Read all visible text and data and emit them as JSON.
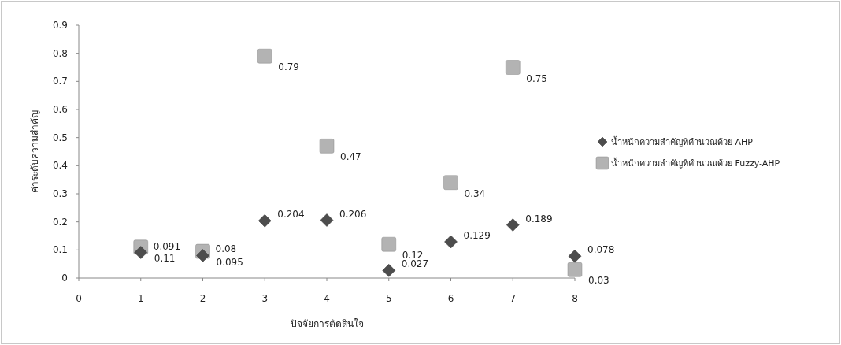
{
  "chart_data": {
    "type": "scatter",
    "xlabel": "ปัจจัยการตัดสินใจ",
    "ylabel": "ค่าระดับความสำคัญ",
    "x": [
      1,
      2,
      3,
      4,
      5,
      6,
      7,
      8
    ],
    "series": [
      {
        "name": "น้ำหนักความสำคัญที่คำนวณด้วย AHP",
        "color": "#4d4d4d",
        "marker": "diamond",
        "values": [
          0.091,
          0.08,
          0.204,
          0.206,
          0.027,
          0.129,
          0.189,
          0.078
        ]
      },
      {
        "name": "น้ำหนักความสำคัญที่คำนวณด้วย Fuzzy-AHP",
        "color": "#b3b3b3",
        "marker": "square",
        "values": [
          0.11,
          0.095,
          0.79,
          0.47,
          0.12,
          0.34,
          0.75,
          0.03
        ]
      }
    ],
    "xlim": [
      0,
      8
    ],
    "xticks": [
      0,
      1,
      2,
      3,
      4,
      5,
      6,
      7,
      8
    ],
    "ylim": [
      0,
      0.9
    ],
    "yticks": [
      {
        "value": 0,
        "label": "0"
      },
      0.1,
      0.2,
      0.3,
      0.4,
      0.5,
      0.6,
      0.7,
      0.8,
      0.9
    ],
    "data_labels": true,
    "legend": "right",
    "grid": false
  }
}
